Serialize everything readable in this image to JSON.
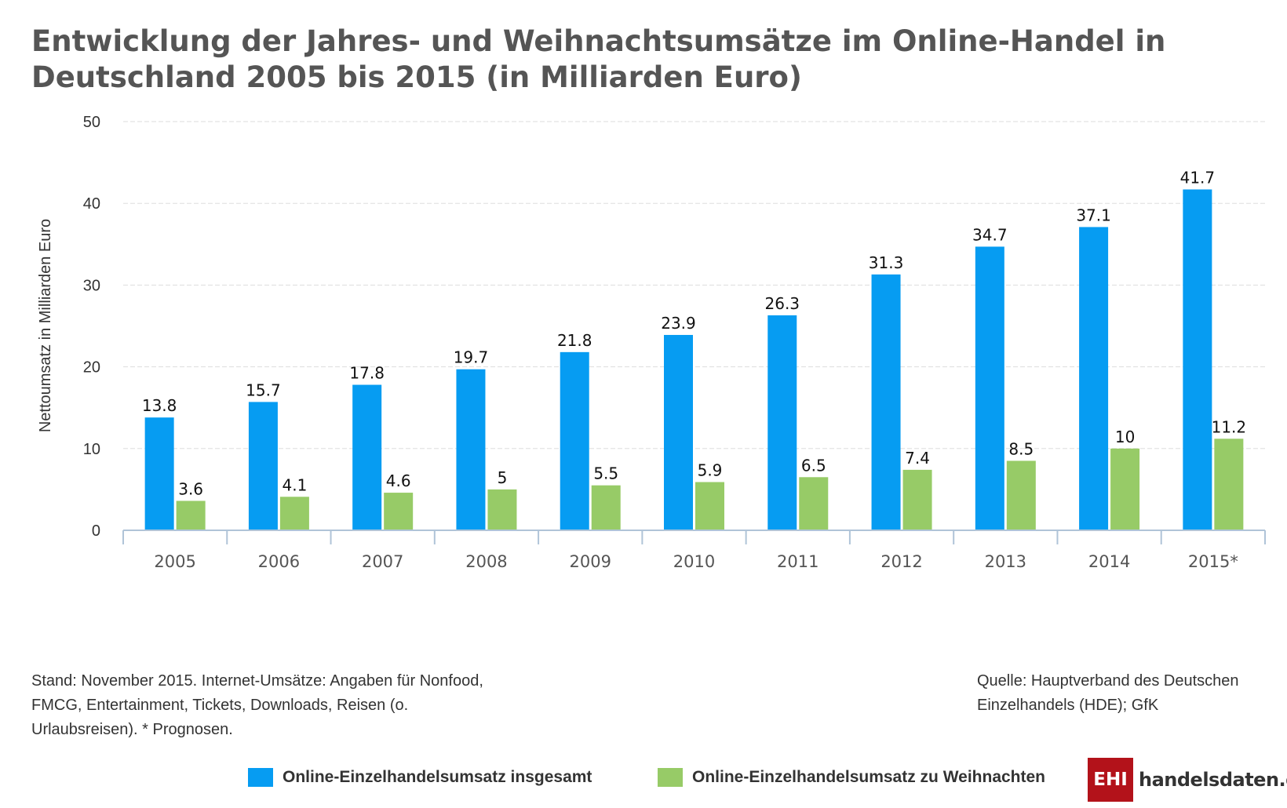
{
  "chart_data": {
    "type": "bar",
    "title": "Entwicklung der Jahres- und Weihnachtsumsätze im Online-Handel in Deutschland 2005 bis 2015 (in Milliarden Euro)",
    "xlabel": "",
    "ylabel": "Nettoumsatz in Milliarden Euro",
    "ylim": [
      0,
      50
    ],
    "yticks": [
      0,
      10,
      20,
      30,
      40,
      50
    ],
    "grid": true,
    "legend_position": "bottom",
    "categories": [
      "2005",
      "2006",
      "2007",
      "2008",
      "2009",
      "2010",
      "2011",
      "2012",
      "2013",
      "2014",
      "2015*"
    ],
    "series": [
      {
        "name": "Online-Einzelhandelsumsatz insgesamt",
        "color": "#069cf2",
        "values": [
          13.8,
          15.7,
          17.8,
          19.7,
          21.8,
          23.9,
          26.3,
          31.3,
          34.7,
          37.1,
          41.7
        ]
      },
      {
        "name": "Online-Einzelhandelsumsatz zu Weihnachten",
        "color": "#97cb67",
        "values": [
          3.6,
          4.1,
          4.6,
          5,
          5.5,
          5.9,
          6.5,
          7.4,
          8.5,
          10,
          11.2
        ]
      }
    ]
  },
  "notes": {
    "left": "Stand: November 2015. Internet-Umsätze: Angaben für Nonfood, FMCG, Entertainment, Tickets, Downloads, Reisen (o. Urlaubsreisen). * Prognosen.",
    "right": "Quelle: Hauptverband des Deutschen Einzelhandels (HDE); GfK"
  },
  "logo": {
    "box_text": "EHI",
    "text": "handelsdaten.de",
    "color": "#b3121a"
  }
}
